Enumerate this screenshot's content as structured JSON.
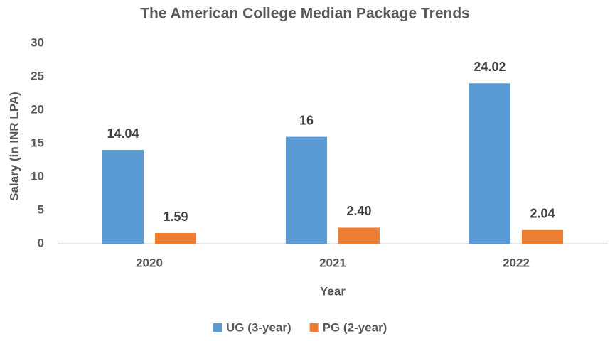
{
  "chart_data": {
    "type": "grouped-bar",
    "title": "The American College Median Package Trends",
    "x_label": "Year",
    "y_label": "Salary (in INR LPA)",
    "categories": [
      "2020",
      "2021",
      "2022"
    ],
    "series": [
      {
        "name": "UG (3-year)",
        "color": "#5b9bd5",
        "values": [
          14.04,
          16,
          24.02
        ]
      },
      {
        "name": "PG (2-year)",
        "color": "#ed7d31",
        "values": [
          1.59,
          2.4,
          2.04
        ],
        "value_labels": [
          "1.59",
          "2.40",
          "2.04"
        ]
      }
    ],
    "ylim": [
      0,
      30
    ],
    "yticks": [
      0,
      5,
      10,
      15,
      20,
      25,
      30
    ],
    "grid": false,
    "legend": "bottom"
  }
}
